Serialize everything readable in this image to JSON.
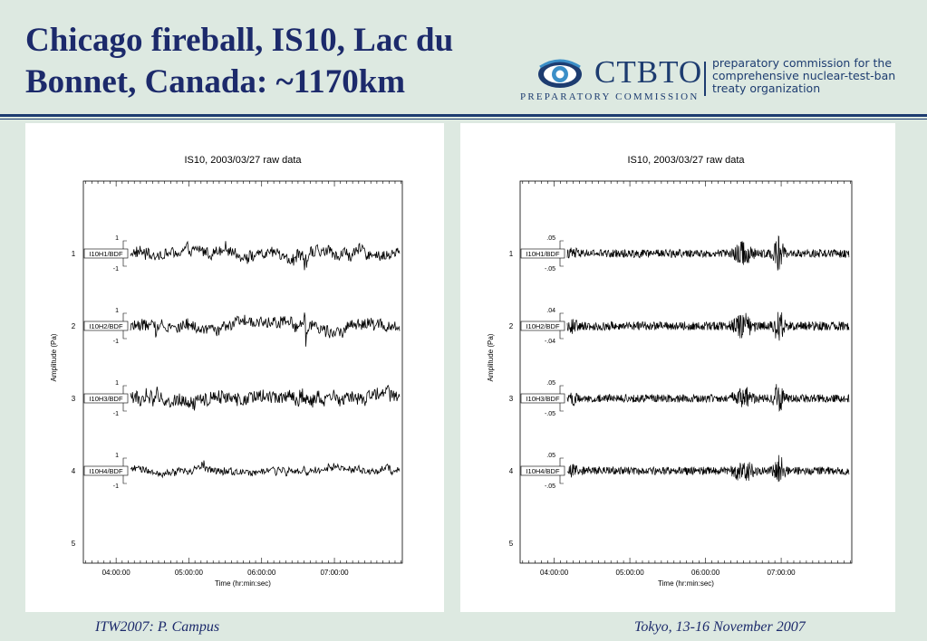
{
  "slide": {
    "title": "Chicago fireball, IS10, Lac du Bonnet, Canada: ~1170km",
    "footer_left": "ITW2007: P. Campus",
    "footer_right": "Tokyo, 13-16 November 2007"
  },
  "logo": {
    "name": "CTBTO",
    "subtitle": "PREPARATORY COMMISSION",
    "description": [
      "preparatory commission for the",
      "comprehensive nuclear-test-ban",
      "treaty organization"
    ],
    "icon": "ctbto-emblem-icon"
  },
  "colors": {
    "background": "#dde9e1",
    "title": "#1c2a6b",
    "rule": "#1d3c70",
    "trace": "#000000"
  },
  "chart_data": [
    {
      "type": "line",
      "title": "IS10, 2003/03/27 raw data",
      "xlabel": "Time (hr:min:sec)",
      "ylabel": "Amplitude (Pa)",
      "x_ticks": [
        "04:00:00",
        "05:00:00",
        "06:00:00",
        "07:00:00"
      ],
      "y_ticks": [
        "1",
        "2",
        "3",
        "4",
        "5"
      ],
      "xlim": [
        "03:33:00",
        "07:56:00"
      ],
      "series": [
        {
          "name": "I10H1/BDF",
          "scale_top": "1",
          "scale_bottom": "-1",
          "noise": 0.17,
          "events": [
            [
              6.6,
              0.38,
              0.02
            ],
            [
              6.47,
              0.18,
              0.03
            ]
          ]
        },
        {
          "name": "I10H2/BDF",
          "scale_top": "1",
          "scale_bottom": "-1",
          "noise": 0.17,
          "events": [
            [
              6.6,
              0.4,
              0.03
            ],
            [
              4.55,
              0.16,
              0.03
            ]
          ]
        },
        {
          "name": "I10H3/BDF",
          "scale_top": "1",
          "scale_bottom": "-1",
          "noise": 0.2,
          "events": [
            [
              4.55,
              0.26,
              0.03
            ],
            [
              6.55,
              0.2,
              0.04
            ]
          ]
        },
        {
          "name": "I10H4/BDF",
          "scale_top": "1",
          "scale_bottom": "-1",
          "noise": 0.11,
          "events": [
            [
              3.62,
              0.26,
              0.01
            ],
            [
              6.58,
              0.18,
              0.03
            ],
            [
              5.2,
              0.12,
              0.03
            ]
          ]
        }
      ]
    },
    {
      "type": "line",
      "title": "IS10, 2003/03/27 raw data",
      "xlabel": "Time (hr:min:sec)",
      "ylabel": "Amplitude (Pa)",
      "x_ticks": [
        "04:00:00",
        "05:00:00",
        "06:00:00",
        "07:00:00"
      ],
      "y_ticks": [
        "1",
        "2",
        "3",
        "4",
        "5"
      ],
      "xlim": [
        "03:33:00",
        "07:56:00"
      ],
      "series": [
        {
          "name": "I10H1/BDF",
          "scale_top": ".05",
          "scale_bottom": "-.05",
          "noise": 0.1,
          "events": [
            [
              6.97,
              0.35,
              0.06
            ],
            [
              6.5,
              0.22,
              0.12
            ],
            [
              4.25,
              0.09,
              0.05
            ]
          ]
        },
        {
          "name": "I10H2/BDF",
          "scale_top": ".04",
          "scale_bottom": "-.04",
          "noise": 0.11,
          "events": [
            [
              6.97,
              0.36,
              0.06
            ],
            [
              6.5,
              0.24,
              0.12
            ],
            [
              4.25,
              0.1,
              0.05
            ]
          ]
        },
        {
          "name": "I10H3/BDF",
          "scale_top": ".05",
          "scale_bottom": "-.05",
          "noise": 0.1,
          "events": [
            [
              6.97,
              0.36,
              0.06
            ],
            [
              6.5,
              0.22,
              0.12
            ],
            [
              4.25,
              0.09,
              0.05
            ]
          ]
        },
        {
          "name": "I10H4/BDF",
          "scale_top": ".05",
          "scale_bottom": "-.05",
          "noise": 0.1,
          "events": [
            [
              6.97,
              0.36,
              0.06
            ],
            [
              6.5,
              0.22,
              0.12
            ],
            [
              4.25,
              0.09,
              0.05
            ]
          ]
        }
      ]
    }
  ]
}
